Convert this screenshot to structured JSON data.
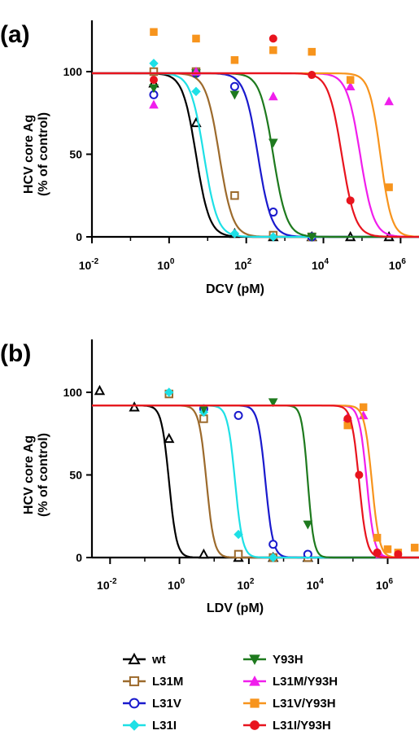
{
  "chart_data": [
    {
      "panel_label": "(a)",
      "type": "scatter",
      "xlabel": "DCV (pM)",
      "ylabel": "HCV core Ag",
      "ylabel_sub": "(% of control)",
      "x_scale": "log",
      "xlim": [
        0.01,
        3000000
      ],
      "ylim": [
        0,
        130
      ],
      "x_ticks": [
        {
          "base": "10",
          "exp": "-2",
          "value": 0.01
        },
        {
          "base": "10",
          "exp": "0",
          "value": 1
        },
        {
          "base": "10",
          "exp": "2",
          "value": 100
        },
        {
          "base": "10",
          "exp": "4",
          "value": 10000
        },
        {
          "base": "10",
          "exp": "6",
          "value": 1000000
        }
      ],
      "y_ticks": [
        "0",
        "50",
        "100"
      ],
      "y_tick_values": [
        0,
        50,
        100
      ],
      "series": [
        {
          "name": "wt",
          "color": "#000000",
          "marker": "triangle-open",
          "top": 99,
          "ec50": 5,
          "hill": 2.5,
          "points": [
            {
              "x": 0.4,
              "y": 93
            },
            {
              "x": 5,
              "y": 69
            },
            {
              "x": 50,
              "y": 2
            },
            {
              "x": 500,
              "y": 0
            },
            {
              "x": 5000,
              "y": 0
            },
            {
              "x": 50000,
              "y": 0
            },
            {
              "x": 500000,
              "y": 0
            }
          ]
        },
        {
          "name": "L31M",
          "color": "#9c6a2c",
          "marker": "square-open",
          "top": 99,
          "ec50": 20,
          "hill": 2.5,
          "points": [
            {
              "x": 0.4,
              "y": 100
            },
            {
              "x": 5,
              "y": 100
            },
            {
              "x": 50,
              "y": 25
            },
            {
              "x": 500,
              "y": 1
            },
            {
              "x": 5000,
              "y": 0
            }
          ]
        },
        {
          "name": "L31V",
          "color": "#1a1acd",
          "marker": "circle-open",
          "top": 99,
          "ec50": 200,
          "hill": 2.5,
          "points": [
            {
              "x": 0.4,
              "y": 86
            },
            {
              "x": 5,
              "y": 99
            },
            {
              "x": 50,
              "y": 91
            },
            {
              "x": 500,
              "y": 15
            },
            {
              "x": 5000,
              "y": 0
            }
          ]
        },
        {
          "name": "L31I",
          "color": "#1ee0e6",
          "marker": "diamond-filled",
          "top": 99,
          "ec50": 8,
          "hill": 2.5,
          "points": [
            {
              "x": 0.4,
              "y": 105
            },
            {
              "x": 5,
              "y": 88
            },
            {
              "x": 50,
              "y": 2
            },
            {
              "x": 500,
              "y": 0
            }
          ]
        },
        {
          "name": "Y93H",
          "color": "#1e7a1e",
          "marker": "triangle-down-filled",
          "top": 99,
          "ec50": 500,
          "hill": 2.5,
          "points": [
            {
              "x": 0.4,
              "y": 90
            },
            {
              "x": 5,
              "y": 99
            },
            {
              "x": 50,
              "y": 86
            },
            {
              "x": 500,
              "y": 57
            },
            {
              "x": 5000,
              "y": 0
            }
          ]
        },
        {
          "name": "L31M/Y93H",
          "color": "#f01eec",
          "marker": "triangle-filled",
          "top": 99,
          "ec50": 90000,
          "hill": 2.5,
          "points": [
            {
              "x": 0.4,
              "y": 80
            },
            {
              "x": 5,
              "y": 100
            },
            {
              "x": 500,
              "y": 85
            },
            {
              "x": 50000,
              "y": 91
            },
            {
              "x": 500000,
              "y": 82
            }
          ]
        },
        {
          "name": "L31V/Y93H",
          "color": "#f7941d",
          "marker": "square-filled",
          "top": 99,
          "ec50": 300000,
          "hill": 3,
          "points": [
            {
              "x": 0.4,
              "y": 124
            },
            {
              "x": 5,
              "y": 120
            },
            {
              "x": 50,
              "y": 107
            },
            {
              "x": 500,
              "y": 113
            },
            {
              "x": 5000,
              "y": 112
            },
            {
              "x": 50000,
              "y": 95
            },
            {
              "x": 500000,
              "y": 30
            }
          ]
        },
        {
          "name": "L31I/Y93H",
          "color": "#e8141e",
          "marker": "circle-filled",
          "top": 99,
          "ec50": 30000,
          "hill": 2.5,
          "points": [
            {
              "x": 0.4,
              "y": 95
            },
            {
              "x": 500,
              "y": 120
            },
            {
              "x": 5000,
              "y": 98
            },
            {
              "x": 50000,
              "y": 22
            }
          ]
        }
      ]
    },
    {
      "panel_label": "(b)",
      "type": "scatter",
      "xlabel": "LDV (pM)",
      "ylabel": "HCV core Ag",
      "ylabel_sub": "(% of control)",
      "x_scale": "log",
      "xlim": [
        0.003,
        8000000
      ],
      "ylim": [
        0,
        130
      ],
      "x_ticks": [
        {
          "base": "10",
          "exp": "-2",
          "value": 0.01
        },
        {
          "base": "10",
          "exp": "0",
          "value": 1
        },
        {
          "base": "10",
          "exp": "2",
          "value": 100
        },
        {
          "base": "10",
          "exp": "4",
          "value": 10000
        },
        {
          "base": "10",
          "exp": "6",
          "value": 1000000
        }
      ],
      "y_ticks": [
        "0",
        "50",
        "100"
      ],
      "y_tick_values": [
        0,
        50,
        100
      ],
      "series": [
        {
          "name": "wt",
          "color": "#000000",
          "marker": "triangle-open",
          "top": 92,
          "ec50": 0.5,
          "hill": 4,
          "points": [
            {
              "x": 0.005,
              "y": 101
            },
            {
              "x": 0.05,
              "y": 91
            },
            {
              "x": 0.5,
              "y": 72
            },
            {
              "x": 5,
              "y": 2
            },
            {
              "x": 50,
              "y": 0
            },
            {
              "x": 500,
              "y": 0
            },
            {
              "x": 5000,
              "y": 0
            }
          ]
        },
        {
          "name": "L31M",
          "color": "#9c6a2c",
          "marker": "square-open",
          "top": 92,
          "ec50": 6,
          "hill": 4,
          "points": [
            {
              "x": 0.5,
              "y": 99
            },
            {
              "x": 5,
              "y": 84
            },
            {
              "x": 50,
              "y": 2
            },
            {
              "x": 500,
              "y": 0
            },
            {
              "x": 5000,
              "y": 0
            }
          ]
        },
        {
          "name": "L31V",
          "color": "#1a1acd",
          "marker": "circle-open",
          "top": 92,
          "ec50": 300,
          "hill": 4,
          "points": [
            {
              "x": 5,
              "y": 90
            },
            {
              "x": 50,
              "y": 86
            },
            {
              "x": 500,
              "y": 8
            },
            {
              "x": 5000,
              "y": 2
            }
          ]
        },
        {
          "name": "L31I",
          "color": "#1ee0e6",
          "marker": "diamond-filled",
          "top": 92,
          "ec50": 40,
          "hill": 4,
          "points": [
            {
              "x": 0.5,
              "y": 100
            },
            {
              "x": 5,
              "y": 88
            },
            {
              "x": 50,
              "y": 14
            },
            {
              "x": 500,
              "y": 0
            }
          ]
        },
        {
          "name": "Y93H",
          "color": "#1e7a1e",
          "marker": "triangle-down-filled",
          "top": 92,
          "ec50": 5000,
          "hill": 5,
          "points": [
            {
              "x": 5,
              "y": 90
            },
            {
              "x": 500,
              "y": 94
            },
            {
              "x": 5000,
              "y": 20
            }
          ]
        },
        {
          "name": "L31M/Y93H",
          "color": "#f01eec",
          "marker": "triangle-filled",
          "top": 92,
          "ec50": 250000,
          "hill": 4,
          "points": [
            {
              "x": 70000,
              "y": 85
            },
            {
              "x": 200000,
              "y": 86
            },
            {
              "x": 600000,
              "y": 2
            },
            {
              "x": 2000000,
              "y": 2
            }
          ]
        },
        {
          "name": "L31V/Y93H",
          "color": "#f7941d",
          "marker": "square-filled",
          "top": 92,
          "ec50": 350000,
          "hill": 4,
          "points": [
            {
              "x": 70000,
              "y": 80
            },
            {
              "x": 200000,
              "y": 91
            },
            {
              "x": 500000,
              "y": 12
            },
            {
              "x": 1000000,
              "y": 5
            },
            {
              "x": 2000000,
              "y": 3
            },
            {
              "x": 6000000,
              "y": 6
            }
          ]
        },
        {
          "name": "L31I/Y93H",
          "color": "#e8141e",
          "marker": "circle-filled",
          "top": 92,
          "ec50": 150000,
          "hill": 4,
          "points": [
            {
              "x": 70000,
              "y": 84
            },
            {
              "x": 150000,
              "y": 50
            },
            {
              "x": 500000,
              "y": 3
            },
            {
              "x": 2000000,
              "y": 2
            }
          ]
        }
      ]
    }
  ],
  "legend": {
    "items": [
      {
        "label": "wt",
        "color": "#000000",
        "marker": "triangle-open"
      },
      {
        "label": "Y93H",
        "color": "#1e7a1e",
        "marker": "triangle-down-filled"
      },
      {
        "label": "L31M",
        "color": "#9c6a2c",
        "marker": "square-open"
      },
      {
        "label": "L31M/Y93H",
        "color": "#f01eec",
        "marker": "triangle-filled"
      },
      {
        "label": "L31V",
        "color": "#1a1acd",
        "marker": "circle-open"
      },
      {
        "label": "L31V/Y93H",
        "color": "#f7941d",
        "marker": "square-filled"
      },
      {
        "label": "L31I",
        "color": "#1ee0e6",
        "marker": "diamond-filled"
      },
      {
        "label": "L31I/Y93H",
        "color": "#e8141e",
        "marker": "circle-filled"
      }
    ]
  }
}
